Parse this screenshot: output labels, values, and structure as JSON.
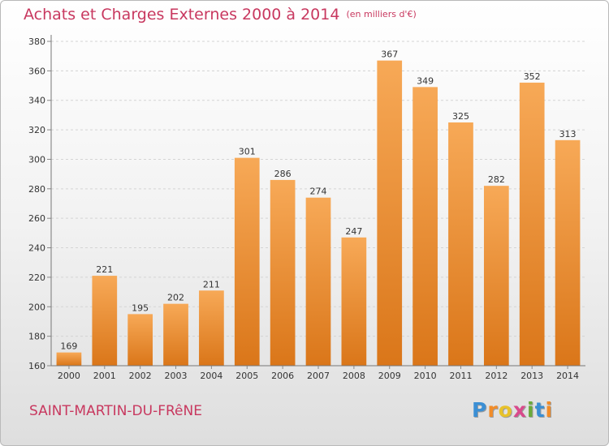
{
  "chart_data": {
    "type": "bar",
    "title": "Achats et Charges Externes 2000 à 2014",
    "unit": "(en milliers d'€)",
    "categories": [
      "2000",
      "2001",
      "2002",
      "2003",
      "2004",
      "2005",
      "2006",
      "2007",
      "2008",
      "2009",
      "2010",
      "2011",
      "2012",
      "2013",
      "2014"
    ],
    "values": [
      169,
      221,
      195,
      202,
      211,
      301,
      286,
      274,
      247,
      367,
      349,
      325,
      282,
      352,
      313
    ],
    "yticks": [
      160,
      180,
      200,
      220,
      240,
      260,
      280,
      300,
      320,
      340,
      360,
      380
    ],
    "ylim": [
      160,
      380
    ],
    "grid": true,
    "bar_color": "#f0953a"
  },
  "location": "SAINT-MARTIN-DU-FRêNE",
  "brand": {
    "letters": [
      "P",
      "r",
      "o",
      "x",
      "i",
      "t",
      "i"
    ],
    "colors": [
      "#3b8fd4",
      "#f28c28",
      "#e8c22a",
      "#d94a8c",
      "#6aaa3a",
      "#3b8fd4",
      "#f28c28"
    ]
  }
}
